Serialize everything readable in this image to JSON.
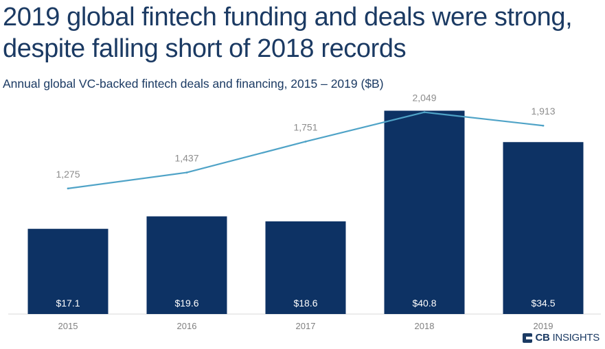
{
  "header": {
    "title_line1": "2019 global fintech funding and deals were strong,",
    "title_line2": "despite falling short of 2018 records",
    "subtitle": "Annual global VC-backed fintech deals and financing, 2015 – 2019 ($B)"
  },
  "logo": {
    "bold": "CB",
    "light": "INSIGHTS",
    "icon": "cb-insights-logo-icon"
  },
  "chart_data": {
    "type": "bar",
    "categories": [
      "2015",
      "2016",
      "2017",
      "2018",
      "2019"
    ],
    "series": [
      {
        "type": "bar",
        "values": [
          17.1,
          19.6,
          18.6,
          40.8,
          34.5
        ],
        "labels": [
          "$17.1",
          "$19.6",
          "$18.6",
          "$40.8",
          "$34.5"
        ],
        "color": "#0d3264"
      },
      {
        "type": "line",
        "values": [
          1275,
          1437,
          1751,
          2049,
          1913
        ],
        "labels": [
          "1,275",
          "1,437",
          "1,751",
          "2,049",
          "1,913"
        ],
        "color": "#4fa3c7"
      }
    ],
    "bar_ylim": [
      0,
      41
    ],
    "line_ylim": [
      0,
      2200
    ],
    "grid": false,
    "colors": {
      "bar": "#0d3264",
      "line": "#4fa3c7",
      "bar_label": "#ffffff",
      "line_label": "#8c8c8c",
      "axis_label": "#7f7f7f",
      "axis": "#d9d9d9"
    }
  }
}
